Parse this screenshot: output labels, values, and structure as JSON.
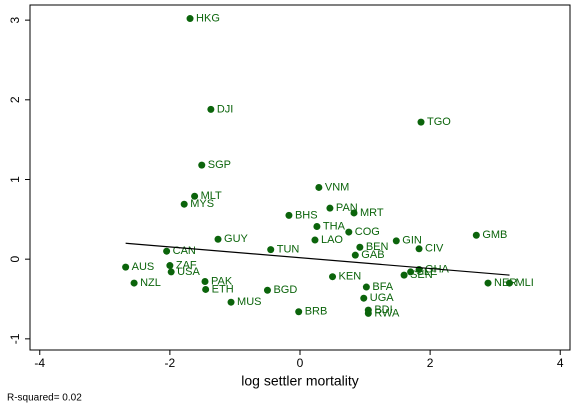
{
  "chart_data": {
    "type": "scatter",
    "xlabel": "log settler mortality",
    "annotation": "R-squared= 0.02",
    "xlim": [
      -4.15,
      4.15
    ],
    "ylim": [
      -1.14,
      3.19
    ],
    "xticks": [
      -4,
      -2,
      0,
      2,
      4
    ],
    "yticks": [
      -1,
      0,
      1,
      2,
      3
    ],
    "color": "#0b640b",
    "labels": [
      "HKG",
      "DJI",
      "TGO",
      "SGP",
      "MLT",
      "MYS",
      "VNM",
      "PAN",
      "MRT",
      "BHS",
      "THA",
      "COG",
      "GMB",
      "GUY",
      "LAO",
      "GIN",
      "BEN",
      "CIV",
      "CAN",
      "GAB",
      "AUS",
      "ZAF",
      "USA",
      "NZL",
      "NER",
      "MLI",
      "ETH",
      "MUS",
      "BRB",
      "UGA",
      "RWA",
      "BDI",
      "GHA",
      "PAK",
      "BFA",
      "TUN",
      "KEN",
      "BGD",
      "SEN",
      "SLE"
    ],
    "x": [
      -1.69,
      -1.37,
      1.86,
      -1.51,
      -1.62,
      -1.78,
      0.29,
      0.46,
      0.83,
      -0.17,
      0.26,
      0.75,
      2.71,
      -1.26,
      0.23,
      1.48,
      0.92,
      1.83,
      -2.05,
      0.85,
      -2.68,
      -2.0,
      -1.98,
      -2.55,
      2.89,
      3.22,
      -1.45,
      -1.06,
      -0.02,
      0.98,
      1.05,
      1.05,
      1.83,
      -1.46,
      1.02,
      -0.45,
      0.5,
      -0.5,
      1.6,
      1.7
    ],
    "values": [
      3.02,
      1.88,
      1.72,
      1.18,
      0.79,
      0.69,
      0.9,
      0.64,
      0.58,
      0.55,
      0.41,
      0.34,
      0.3,
      0.25,
      0.24,
      0.23,
      0.15,
      0.13,
      0.1,
      0.05,
      -0.1,
      -0.08,
      -0.16,
      -0.3,
      -0.3,
      -0.3,
      -0.38,
      -0.54,
      -0.66,
      -0.49,
      -0.68,
      -0.64,
      -0.13,
      -0.28,
      -0.35,
      0.12,
      -0.22,
      -0.39,
      -0.2,
      -0.16
    ],
    "fit_line": {
      "x": [
        -2.68,
        3.22
      ],
      "values": [
        0.2,
        -0.2
      ]
    }
  }
}
